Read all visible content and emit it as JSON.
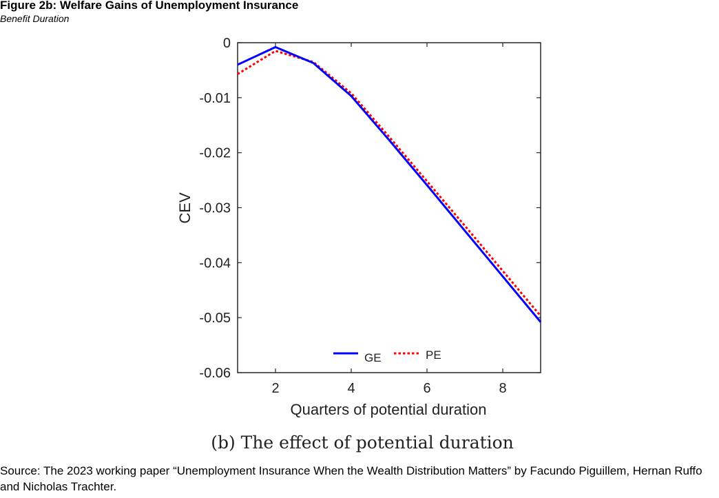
{
  "figure": {
    "title": "Figure 2b: Welfare Gains of Unemployment Insurance",
    "subtitle": "Benefit Duration",
    "caption": "(b) The effect of potential duration",
    "source": "Source: The 2023 working paper “Unemployment Insurance When the Wealth Distribution Matters” by Facundo Piguillem, Hernan Ruffo and Nicholas Trachter."
  },
  "chart_data": {
    "type": "line",
    "xlabel": "Quarters of potential duration",
    "ylabel": "CEV",
    "xlim": [
      1,
      9
    ],
    "ylim": [
      -0.06,
      0
    ],
    "x_ticks": [
      2,
      4,
      6,
      8
    ],
    "x_tick_labels": [
      "2",
      "4",
      "6",
      "8"
    ],
    "y_ticks": [
      0,
      -0.01,
      -0.02,
      -0.03,
      -0.04,
      -0.05,
      -0.06
    ],
    "y_tick_labels": [
      "0",
      "-0.01",
      "-0.02",
      "-0.03",
      "-0.04",
      "-0.05",
      "-0.06"
    ],
    "grid": false,
    "legend_position": "bottom-center",
    "x": [
      1,
      2,
      3,
      4,
      5,
      6,
      7,
      8,
      9
    ],
    "series": [
      {
        "name": "GE",
        "color": "#0000ff",
        "style": "solid",
        "values": [
          -0.004,
          -0.0008,
          -0.0037,
          -0.0097,
          -0.0177,
          -0.0259,
          -0.0342,
          -0.0425,
          -0.0508
        ]
      },
      {
        "name": "PE",
        "color": "#ff0000",
        "style": "dotted",
        "values": [
          -0.0057,
          -0.0015,
          -0.0035,
          -0.0092,
          -0.0171,
          -0.0252,
          -0.0333,
          -0.0415,
          -0.0497
        ]
      }
    ]
  }
}
